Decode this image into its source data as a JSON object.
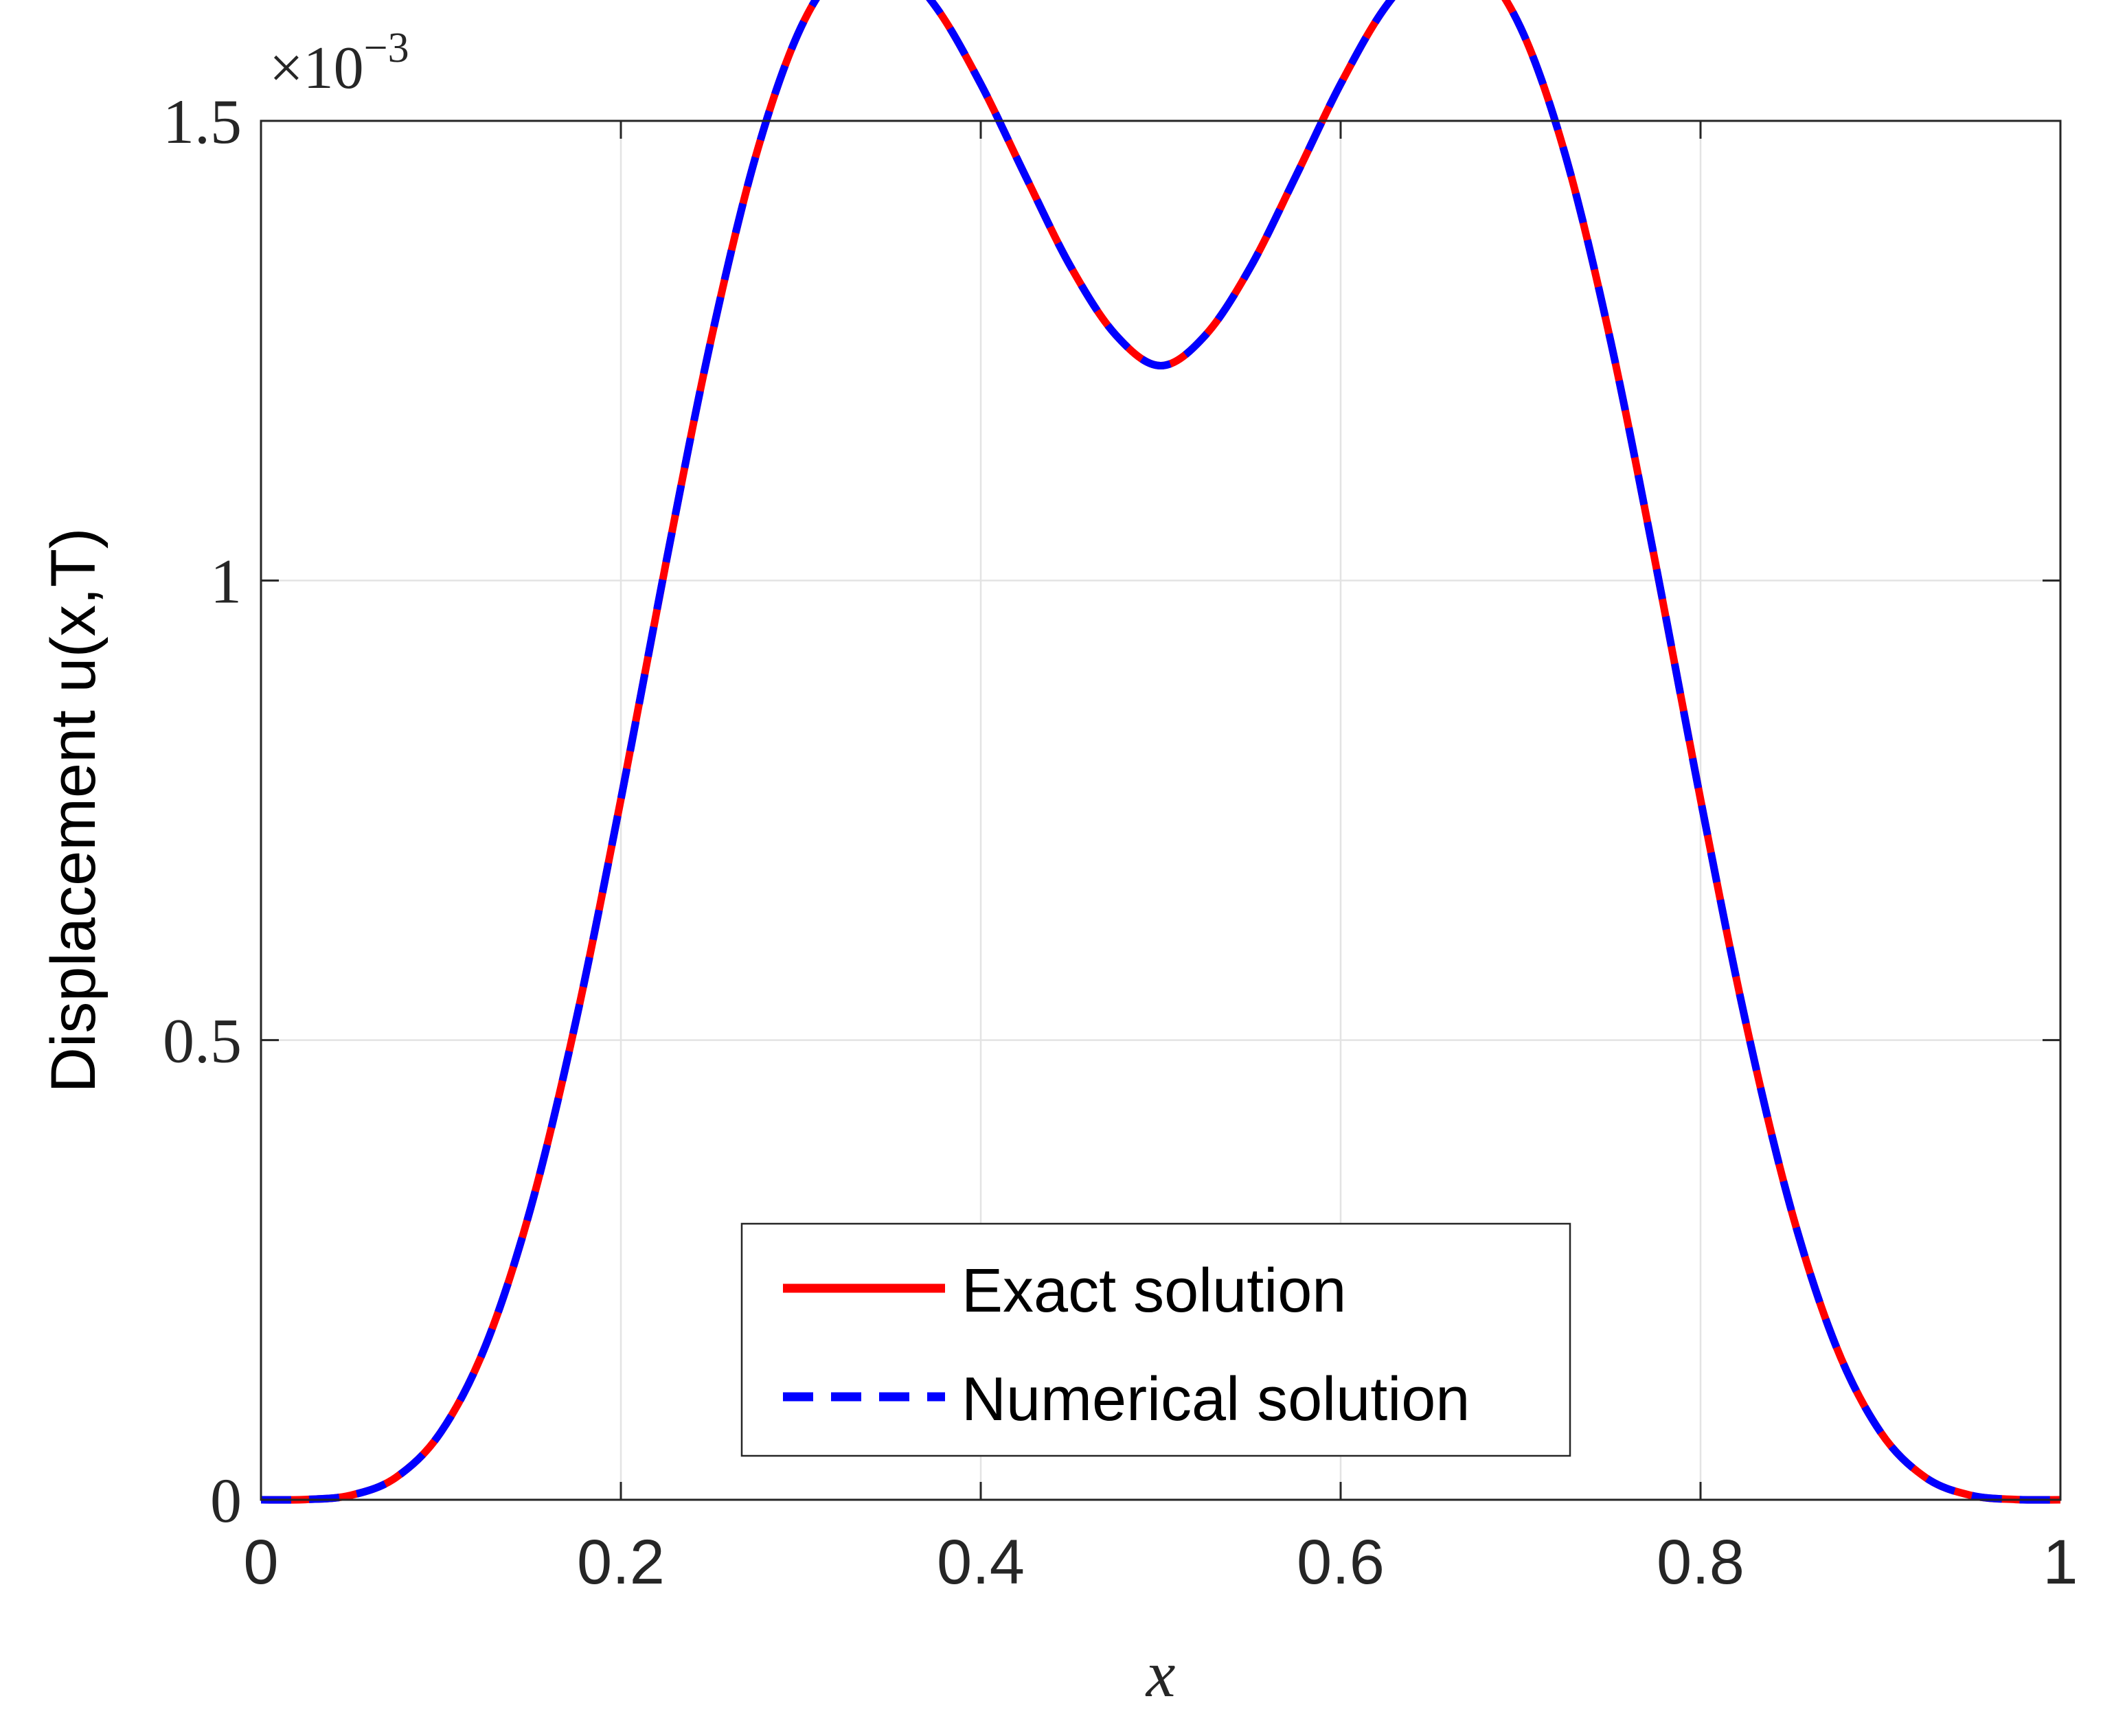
{
  "chart_data": {
    "type": "line",
    "title": "",
    "xlabel": "x",
    "ylabel": "Displacement u(x,T)",
    "xlim": [
      0,
      1
    ],
    "ylim": [
      0,
      1.5
    ],
    "y_exponent_base": "×10",
    "y_exponent_power": "−3",
    "x_ticks": [
      0,
      0.2,
      0.4,
      0.6,
      0.8,
      1
    ],
    "x_tick_labels": [
      "0",
      "0.2",
      "0.4",
      "0.6",
      "0.8",
      "1"
    ],
    "y_ticks": [
      0,
      0.5,
      1,
      1.5
    ],
    "y_tick_labels": [
      "0",
      "0.5",
      "1",
      "1.5"
    ],
    "grid": true,
    "legend_position": "bottom-center",
    "x": [
      0,
      0.025,
      0.05,
      0.075,
      0.1,
      0.125,
      0.15,
      0.175,
      0.2,
      0.225,
      0.25,
      0.275,
      0.3,
      0.325,
      0.35,
      0.375,
      0.4,
      0.425,
      0.45,
      0.475,
      0.5,
      0.525,
      0.55,
      0.575,
      0.6,
      0.625,
      0.65,
      0.675,
      0.7,
      0.725,
      0.75,
      0.775,
      0.8,
      0.825,
      0.85,
      0.875,
      0.9,
      0.925,
      0.95,
      0.975,
      1
    ],
    "series": [
      {
        "name": "Exact solution",
        "color": "#ff0000",
        "style": "solid",
        "values": [
          0,
          0.0003,
          0.0049,
          0.0243,
          0.0737,
          0.1686,
          0.3182,
          0.5207,
          0.7619,
          1.0185,
          1.2608,
          1.4619,
          1.6014,
          1.6705,
          1.6739,
          1.6241,
          1.5401,
          1.4394,
          1.3413,
          1.2672,
          1.2337,
          1.2672,
          1.3413,
          1.4394,
          1.5401,
          1.6241,
          1.6739,
          1.6705,
          1.6014,
          1.4619,
          1.2608,
          1.0185,
          0.7619,
          0.5207,
          0.3182,
          0.1686,
          0.0737,
          0.0243,
          0.0049,
          0.0003,
          0
        ]
      },
      {
        "name": "Numerical solution",
        "color": "#0000ff",
        "style": "dashed",
        "values": [
          0,
          0.0003,
          0.0049,
          0.0243,
          0.0737,
          0.1686,
          0.3182,
          0.5207,
          0.7619,
          1.0185,
          1.2608,
          1.4619,
          1.6014,
          1.6705,
          1.6739,
          1.6241,
          1.5401,
          1.4394,
          1.3413,
          1.2672,
          1.2337,
          1.2672,
          1.3413,
          1.4394,
          1.5401,
          1.6241,
          1.6739,
          1.6705,
          1.6014,
          1.4619,
          1.2608,
          1.0185,
          0.7619,
          0.5207,
          0.3182,
          0.1686,
          0.0737,
          0.0243,
          0.0049,
          0.0003,
          0
        ]
      }
    ]
  }
}
